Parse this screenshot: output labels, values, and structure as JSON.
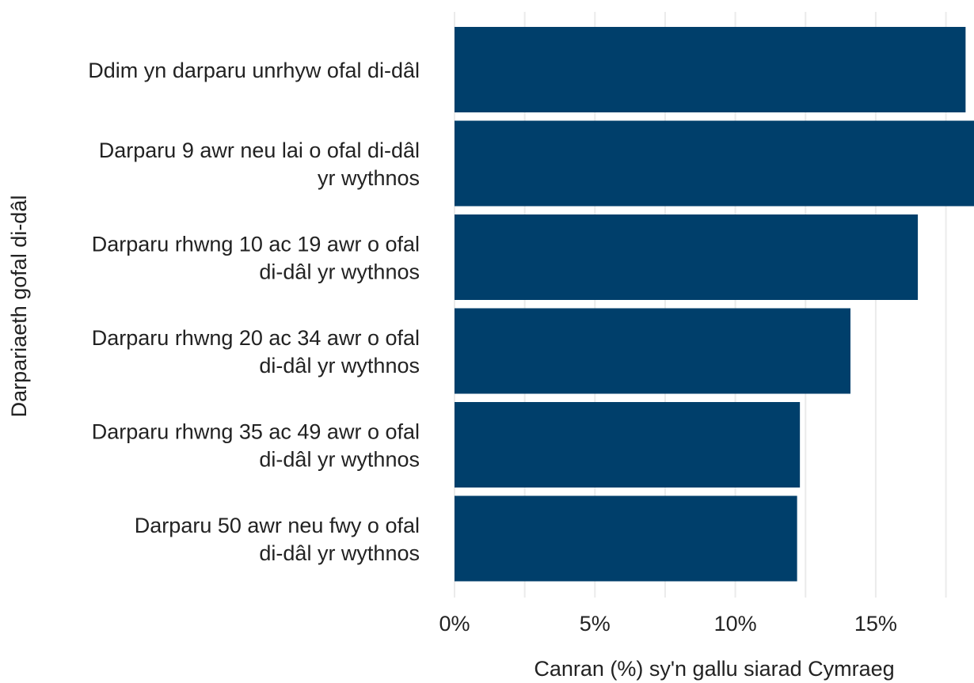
{
  "chart_data": {
    "type": "bar",
    "orientation": "horizontal",
    "categories": [
      [
        "Ddim yn darparu unrhyw ofal di-dâl"
      ],
      [
        "Darparu 9 awr neu lai o ofal di-dâl",
        "yr wythnos"
      ],
      [
        "Darparu rhwng 10 ac 19 awr o ofal",
        "di-dâl yr wythnos"
      ],
      [
        "Darparu rhwng 20 ac 34 awr o ofal",
        "di-dâl yr wythnos"
      ],
      [
        "Darparu rhwng 35 ac 49 awr o ofal",
        "di-dâl yr wythnos"
      ],
      [
        "Darparu 50 awr neu fwy o ofal",
        "di-dâl yr wythnos"
      ]
    ],
    "values": [
      18.2,
      18.5,
      16.5,
      14.1,
      12.3,
      12.2
    ],
    "xlabel": "Canran (%) sy'n gallu siarad Cymraeg",
    "ylabel": "Darpariaeth gofal di-dâl",
    "xticks": [
      0,
      5,
      10,
      15
    ],
    "xtick_labels": [
      "0%",
      "5%",
      "10%",
      "15%"
    ],
    "xlim": [
      0,
      18.5
    ],
    "grid": true,
    "bar_color": "#003f6b"
  }
}
